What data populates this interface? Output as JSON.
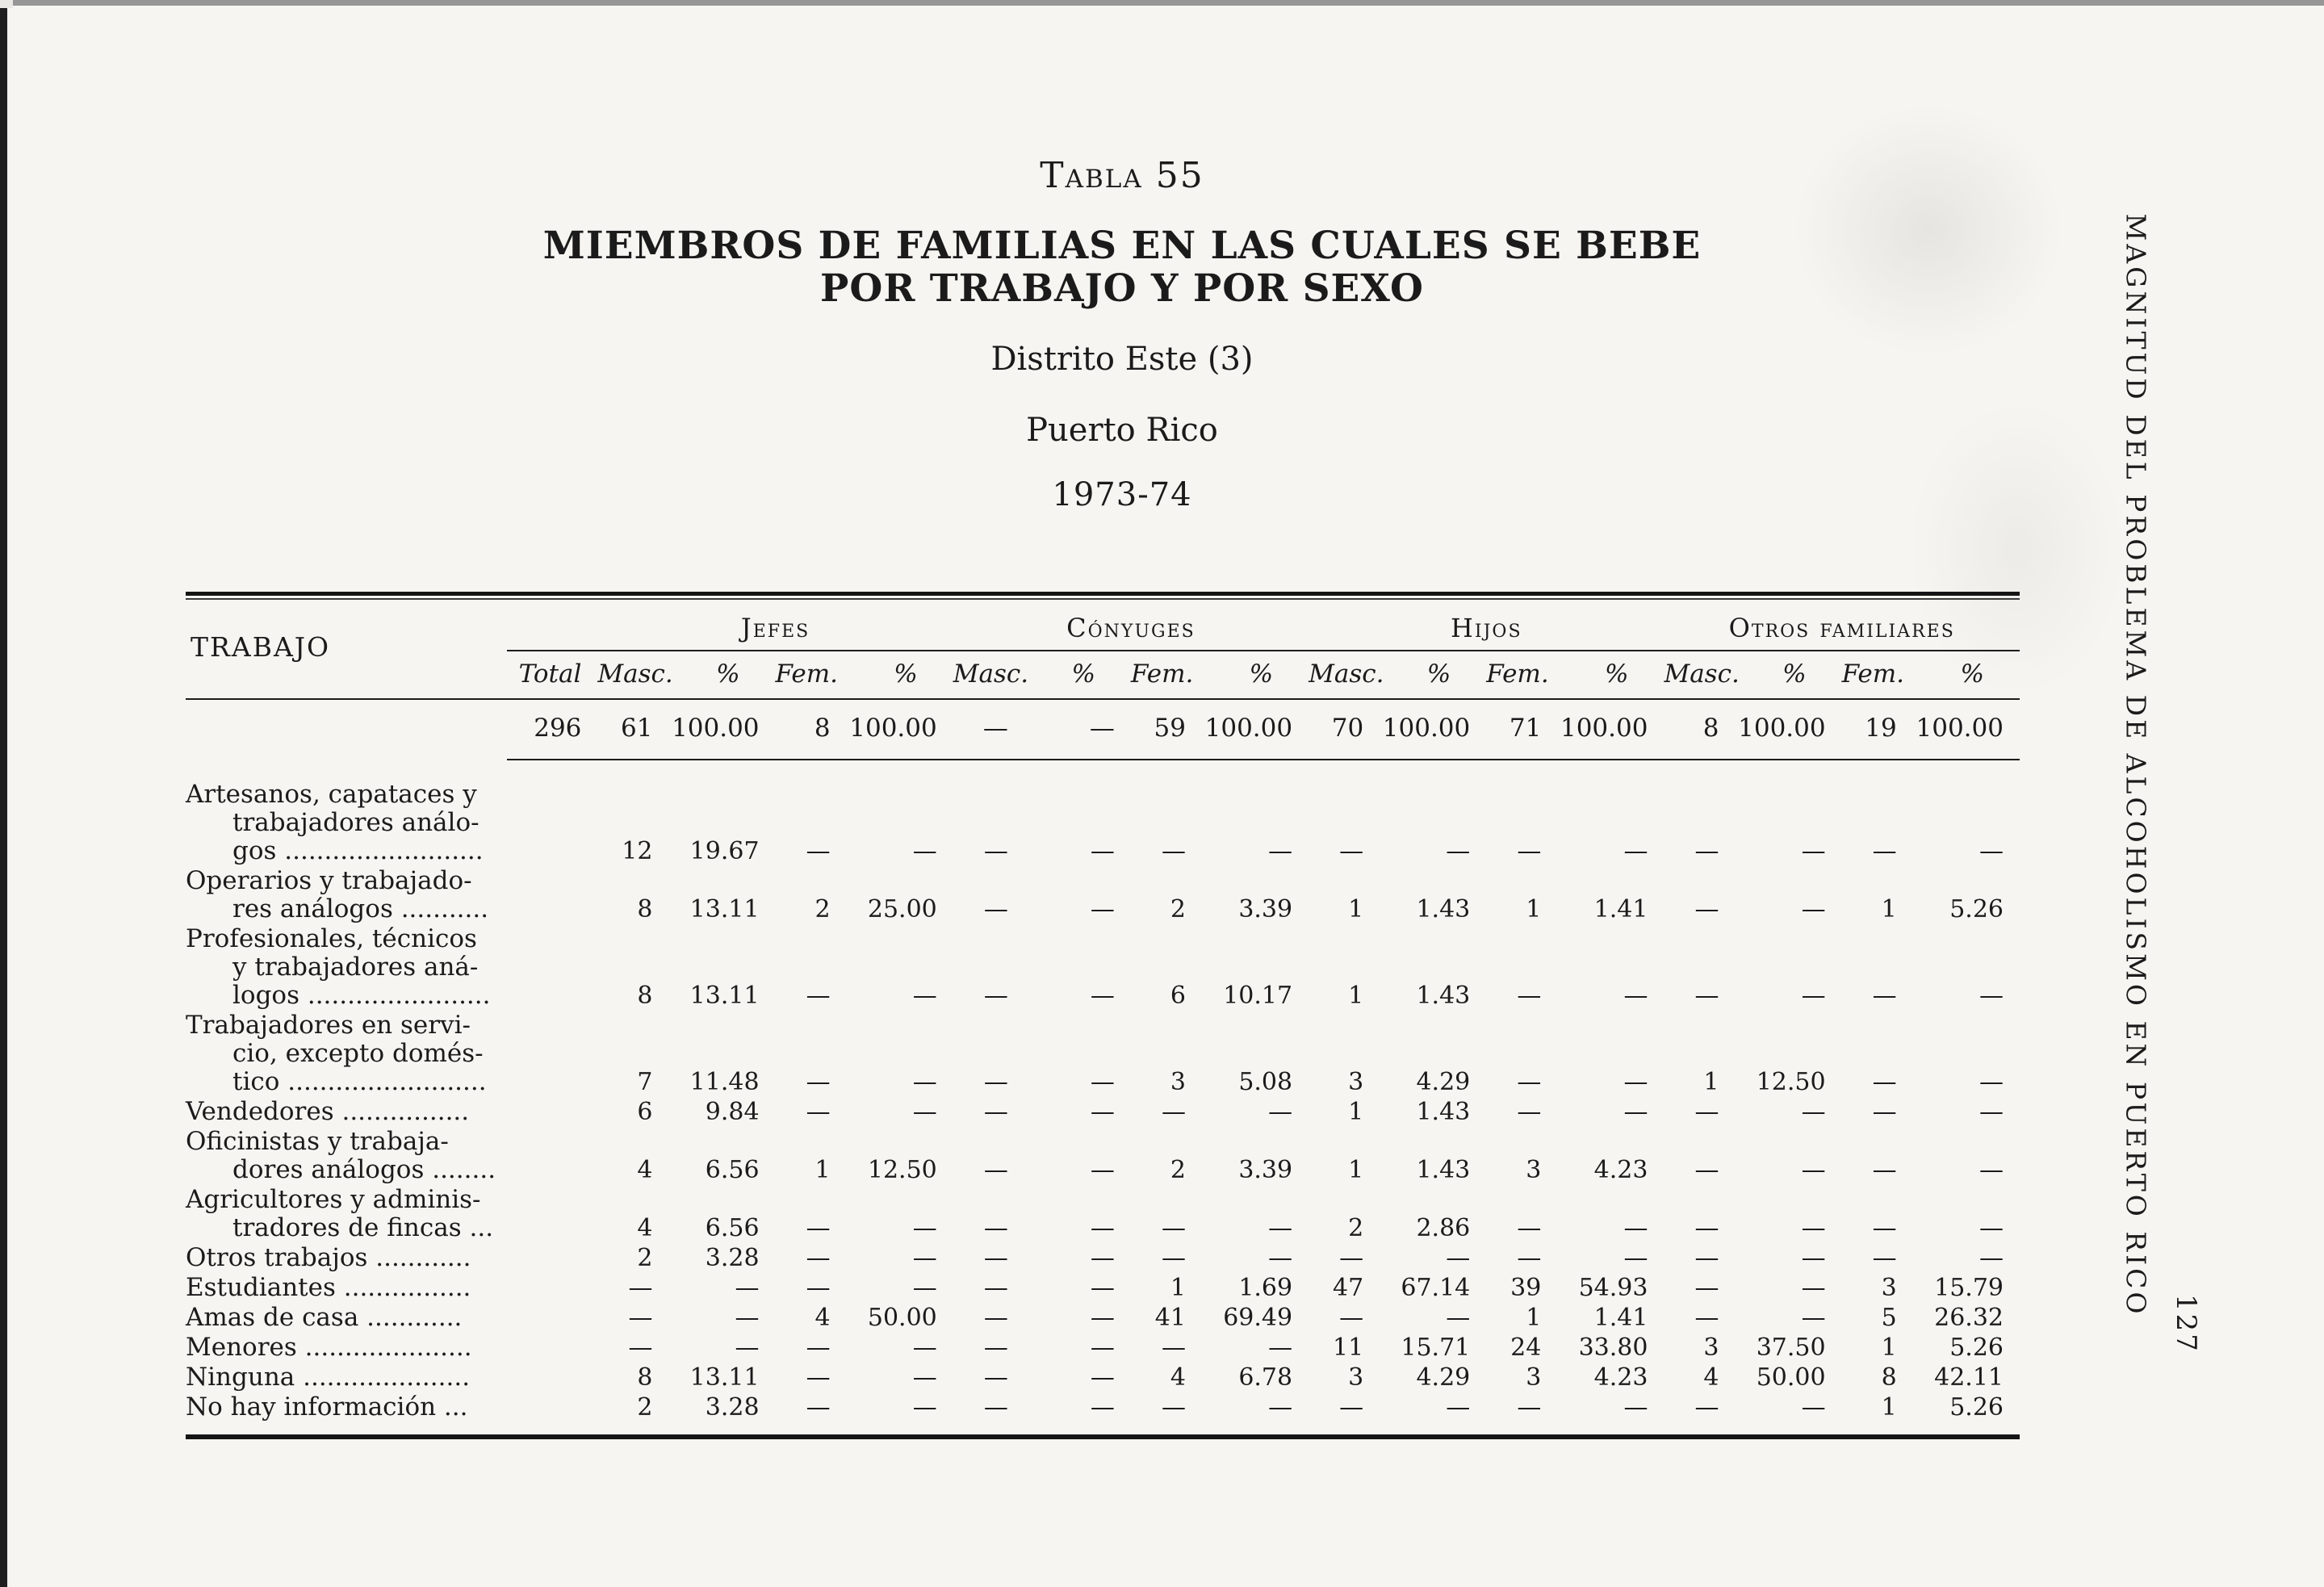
{
  "colors": {
    "paper": "#f6f5f1",
    "ink": "#1b1b1b"
  },
  "header": {
    "table_label": "Tabla 55",
    "title_line1": "MIEMBROS DE FAMILIAS EN LAS CUALES SE BEBE",
    "title_line2": "POR TRABAJO Y POR SEXO",
    "district": "Distrito Este (3)",
    "region": "Puerto Rico",
    "period": "1973-74"
  },
  "margin": {
    "title": "MAGNITUD DEL PROBLEMA DE ALCOHOLISMO EN PUERTO RICO",
    "page_number": "127"
  },
  "table": {
    "row_header": "TRABAJO",
    "groups": [
      "Jefes",
      "Cónyuges",
      "Hijos",
      "Otros familiares"
    ],
    "subheaders": [
      "Total",
      "Masc.",
      "%",
      "Fem.",
      "%",
      "Masc.",
      "%",
      "Fem.",
      "%",
      "Masc.",
      "%",
      "Fem.",
      "%",
      "Masc.",
      "%",
      "Fem.",
      "%"
    ],
    "totals_row": [
      "296",
      "61",
      "100.00",
      "8",
      "100.00",
      "—",
      "—",
      "59",
      "100.00",
      "70",
      "100.00",
      "71",
      "100.00",
      "8",
      "100.00",
      "19",
      "100.00"
    ],
    "rows": [
      {
        "label_lines": [
          "Artesanos, capataces y",
          "trabajadores análo-",
          "gos ........................."
        ],
        "values": [
          "—",
          "—",
          "—",
          "—",
          "—",
          "—",
          "—",
          "—",
          "—",
          "—",
          "—",
          "—",
          "—",
          "—"
        ],
        "lead": [
          "12",
          "19.67"
        ]
      },
      {
        "label_lines": [
          "Operarios y trabajado-",
          "res análogos ..........."
        ],
        "values": [
          "—",
          "—",
          "2",
          "3.39",
          "1",
          "1.43",
          "1",
          "1.41",
          "—",
          "—",
          "1",
          "5.26"
        ],
        "lead": [
          "8",
          "13.11",
          "2",
          "25.00"
        ]
      },
      {
        "label_lines": [
          "Profesionales, técnicos",
          "y trabajadores aná-",
          "logos ......................."
        ],
        "values": [
          "—",
          "—",
          "—",
          "—",
          "6",
          "10.17",
          "1",
          "1.43",
          "—",
          "—",
          "—",
          "—",
          "—",
          "—"
        ],
        "lead": [
          "8",
          "13.11"
        ]
      },
      {
        "label_lines": [
          "Trabajadores en servi-",
          "cio, excepto domés-",
          "tico ........................."
        ],
        "values": [
          "—",
          "—",
          "—",
          "—",
          "3",
          "5.08",
          "3",
          "4.29",
          "—",
          "—",
          "1",
          "12.50",
          "—",
          "—"
        ],
        "lead": [
          "7",
          "11.48"
        ]
      },
      {
        "label_lines": [
          "Vendedores ................"
        ],
        "values": [
          "—",
          "—",
          "—",
          "—",
          "—",
          "—",
          "1",
          "1.43",
          "—",
          "—",
          "—",
          "—",
          "—",
          "—"
        ],
        "lead": [
          "6",
          "9.84"
        ]
      },
      {
        "label_lines": [
          "Oficinistas y trabaja-",
          "dores análogos ........"
        ],
        "values": [
          "—",
          "—",
          "2",
          "3.39",
          "1",
          "1.43",
          "3",
          "4.23",
          "—",
          "—",
          "—",
          "—"
        ],
        "lead": [
          "4",
          "6.56",
          "1",
          "12.50"
        ]
      },
      {
        "label_lines": [
          "Agricultores y adminis-",
          "tradores de fincas ..."
        ],
        "values": [
          "—",
          "—",
          "—",
          "—",
          "—",
          "—",
          "2",
          "2.86",
          "—",
          "—",
          "—",
          "—",
          "—",
          "—"
        ],
        "lead": [
          "4",
          "6.56"
        ]
      },
      {
        "label_lines": [
          "Otros trabajos ............"
        ],
        "values": [
          "—",
          "—",
          "—",
          "—",
          "—",
          "—",
          "—",
          "—",
          "—",
          "—",
          "—",
          "—",
          "—",
          "—"
        ],
        "lead": [
          "2",
          "3.28"
        ]
      },
      {
        "label_lines": [
          "Estudiantes ................"
        ],
        "values": [
          "—",
          "—",
          "—",
          "—",
          "—",
          "—",
          "1",
          "1.69",
          "47",
          "67.14",
          "39",
          "54.93",
          "—",
          "—",
          "3",
          "15.79"
        ],
        "lead": []
      },
      {
        "label_lines": [
          "Amas de casa ............"
        ],
        "values": [
          "—",
          "—",
          "4",
          "50.00",
          "—",
          "—",
          "41",
          "69.49",
          "—",
          "—",
          "1",
          "1.41",
          "—",
          "—",
          "5",
          "26.32"
        ],
        "lead": []
      },
      {
        "label_lines": [
          "Menores ....................."
        ],
        "values": [
          "—",
          "—",
          "—",
          "—",
          "—",
          "—",
          "—",
          "—",
          "11",
          "15.71",
          "24",
          "33.80",
          "3",
          "37.50",
          "1",
          "5.26"
        ],
        "lead": []
      },
      {
        "label_lines": [
          "Ninguna ....................."
        ],
        "values": [
          "—",
          "—",
          "—",
          "—",
          "4",
          "6.78",
          "3",
          "4.29",
          "3",
          "4.23",
          "4",
          "50.00",
          "8",
          "42.11"
        ],
        "lead": [
          "8",
          "13.11"
        ]
      },
      {
        "label_lines": [
          "No hay información ..."
        ],
        "values": [
          "—",
          "—",
          "—",
          "—",
          "—",
          "—",
          "—",
          "—",
          "—",
          "—",
          "—",
          "—",
          "1",
          "5.26"
        ],
        "lead": [
          "2",
          "3.28"
        ]
      }
    ]
  }
}
